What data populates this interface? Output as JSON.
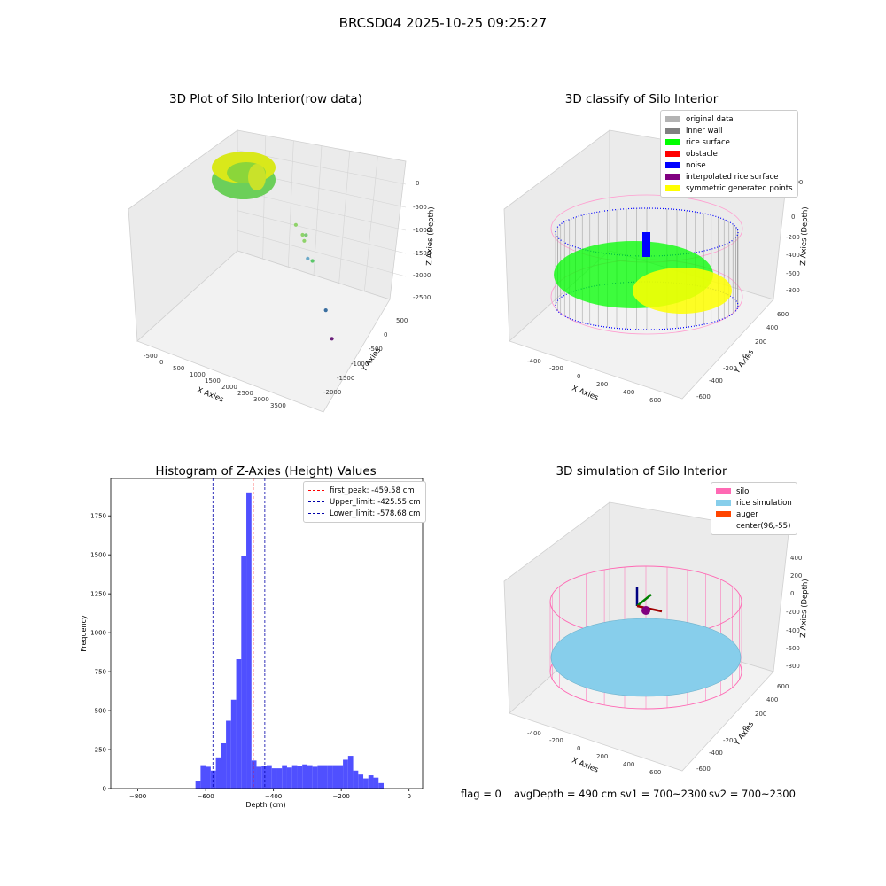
{
  "suptitle": "BRCSD04 2025-10-25 09:25:27",
  "footer": {
    "flag": "flag = 0",
    "avg_depth": "avgDepth = 490 cm",
    "sv1": "sv1 = 700~2300",
    "sv2": "sv2 = 700~2300"
  },
  "colors": {
    "original_data": "#b3b3b3",
    "inner_wall": "#808080",
    "rice_surface": "#00ff00",
    "obstacle": "#ff0000",
    "noise": "#0000ff",
    "interpolated": "#800080",
    "symmetric": "#ffff00",
    "silo": "#ff69b4",
    "rice_sim": "#87ceeb",
    "auger": "#ff4500",
    "hist_bar": "#5050ff"
  },
  "chart_data": [
    {
      "type": "scatter",
      "title": "3D Plot of Silo Interior(row data)",
      "xlabel": "X Axies",
      "ylabel": "Y Axies",
      "zlabel": "Z Axies (Depth)",
      "xticks": [
        "-500",
        "0",
        "500",
        "1000",
        "1500",
        "2000",
        "2500",
        "3000",
        "3500"
      ],
      "yticks": [
        "500",
        "0",
        "-500",
        "-1000",
        "-1500",
        "-2000"
      ],
      "zticks": [
        "0",
        "-500",
        "-1000",
        "-1500",
        "-2000",
        "-2500"
      ],
      "outliers": [
        {
          "x": 2200,
          "y": -300,
          "z": -900
        },
        {
          "x": 2450,
          "y": -350,
          "z": -1100
        },
        {
          "x": 2500,
          "y": -400,
          "z": -1200
        },
        {
          "x": 2550,
          "y": -450,
          "z": -1000
        },
        {
          "x": 2600,
          "y": -500,
          "z": -1550
        },
        {
          "x": 2750,
          "y": -600,
          "z": -1500
        },
        {
          "x": 3000,
          "y": -1400,
          "z": -1900
        },
        {
          "x": 3100,
          "y": -1800,
          "z": -2200
        }
      ]
    },
    {
      "type": "scatter",
      "title": "3D classify of Silo Interior",
      "xlabel": "X Axies",
      "ylabel": "Y Axies",
      "zlabel": "Z Axies (Depth)",
      "xticks": [
        "-400",
        "-200",
        "0",
        "200",
        "400",
        "600"
      ],
      "yticks": [
        "600",
        "400",
        "200",
        "0",
        "-200",
        "-400",
        "-600"
      ],
      "zticks": [
        "200",
        "0",
        "-200",
        "-400",
        "-600",
        "-800"
      ],
      "legend": [
        "original data",
        "inner wall",
        "rice surface",
        "obstacle",
        "noise",
        "interpolated rice surface",
        "symmetric generated points"
      ]
    },
    {
      "type": "bar",
      "title": "Histogram of Z-Axies (Height) Values",
      "xlabel": "Depth (cm)",
      "ylabel": "Frequency",
      "xlim": [
        -880,
        40
      ],
      "ylim": [
        0,
        1990
      ],
      "xticks": [
        -800,
        -600,
        -400,
        -200,
        0
      ],
      "yticks": [
        0,
        250,
        500,
        750,
        1000,
        1250,
        1500,
        1750
      ],
      "bin_start": -630,
      "bin_width": 15,
      "values": [
        50,
        150,
        140,
        115,
        200,
        290,
        435,
        570,
        830,
        1495,
        1900,
        180,
        140,
        145,
        150,
        130,
        130,
        150,
        135,
        150,
        145,
        155,
        150,
        140,
        150,
        150,
        150,
        150,
        150,
        185,
        210,
        115,
        90,
        65,
        85,
        70,
        35
      ],
      "lines": [
        {
          "label": "first_peak: -459.58 cm",
          "x": -459.58,
          "color": "#ff0000"
        },
        {
          "label": "Upper_limit: -425.55 cm",
          "x": -425.55,
          "color": "#0000aa"
        },
        {
          "label": "Lower_limit: -578.68 cm",
          "x": -578.68,
          "color": "#0000aa"
        }
      ]
    },
    {
      "type": "scatter",
      "title": "3D simulation of Silo Interior",
      "xlabel": "X Axies",
      "ylabel": "Y Axies",
      "zlabel": "Z Axies (Depth)",
      "xticks": [
        "-400",
        "-200",
        "0",
        "200",
        "400",
        "600"
      ],
      "yticks": [
        "600",
        "400",
        "200",
        "0",
        "-200",
        "-400",
        "-600"
      ],
      "zticks": [
        "400",
        "200",
        "0",
        "-200",
        "-400",
        "-600",
        "-800"
      ],
      "legend": [
        "silo",
        "rice simulation",
        "auger",
        "center(96,-55)"
      ]
    }
  ]
}
